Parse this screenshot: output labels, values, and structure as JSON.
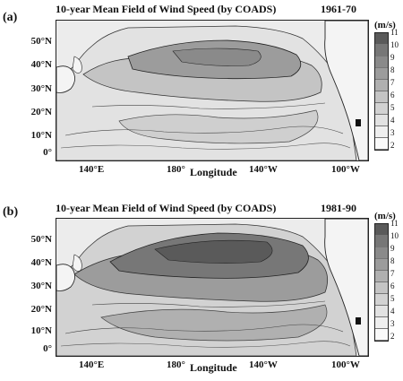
{
  "panels": [
    {
      "label": "(a)",
      "title": "10-year Mean Field of Wind Speed (by COADS)",
      "period": "1961-70",
      "unit": "(m/s)",
      "lat_ticks": [
        "50°N",
        "40°N",
        "30°N",
        "20°N",
        "10°N",
        "0°"
      ],
      "lon_ticks": [
        "140°E",
        "180°",
        "140°W",
        "100°W"
      ],
      "xlabel": "Longitude",
      "colorbar": [
        "11",
        "10",
        "9",
        "8",
        "7",
        "6",
        "5",
        "4",
        "3",
        "2"
      ]
    },
    {
      "label": "(b)",
      "title": "10-year Mean Field of Wind Speed (by COADS)",
      "period": "1981-90",
      "unit": "(m/s)",
      "lat_ticks": [
        "50°N",
        "40°N",
        "30°N",
        "20°N",
        "10°N",
        "0°"
      ],
      "lon_ticks": [
        "140°E",
        "180°",
        "140°W",
        "100°W"
      ],
      "xlabel": "Longitude",
      "colorbar": [
        "11",
        "10",
        "9",
        "8",
        "7",
        "6",
        "5",
        "4",
        "3",
        "2"
      ]
    }
  ],
  "colors": {
    "land": "#f4f4f4",
    "ocean_low": "#e2e2e2",
    "ocean_mid": "#c4c4c4",
    "ocean_high": "#9c9c9c",
    "ocean_peak": "#777777"
  }
}
